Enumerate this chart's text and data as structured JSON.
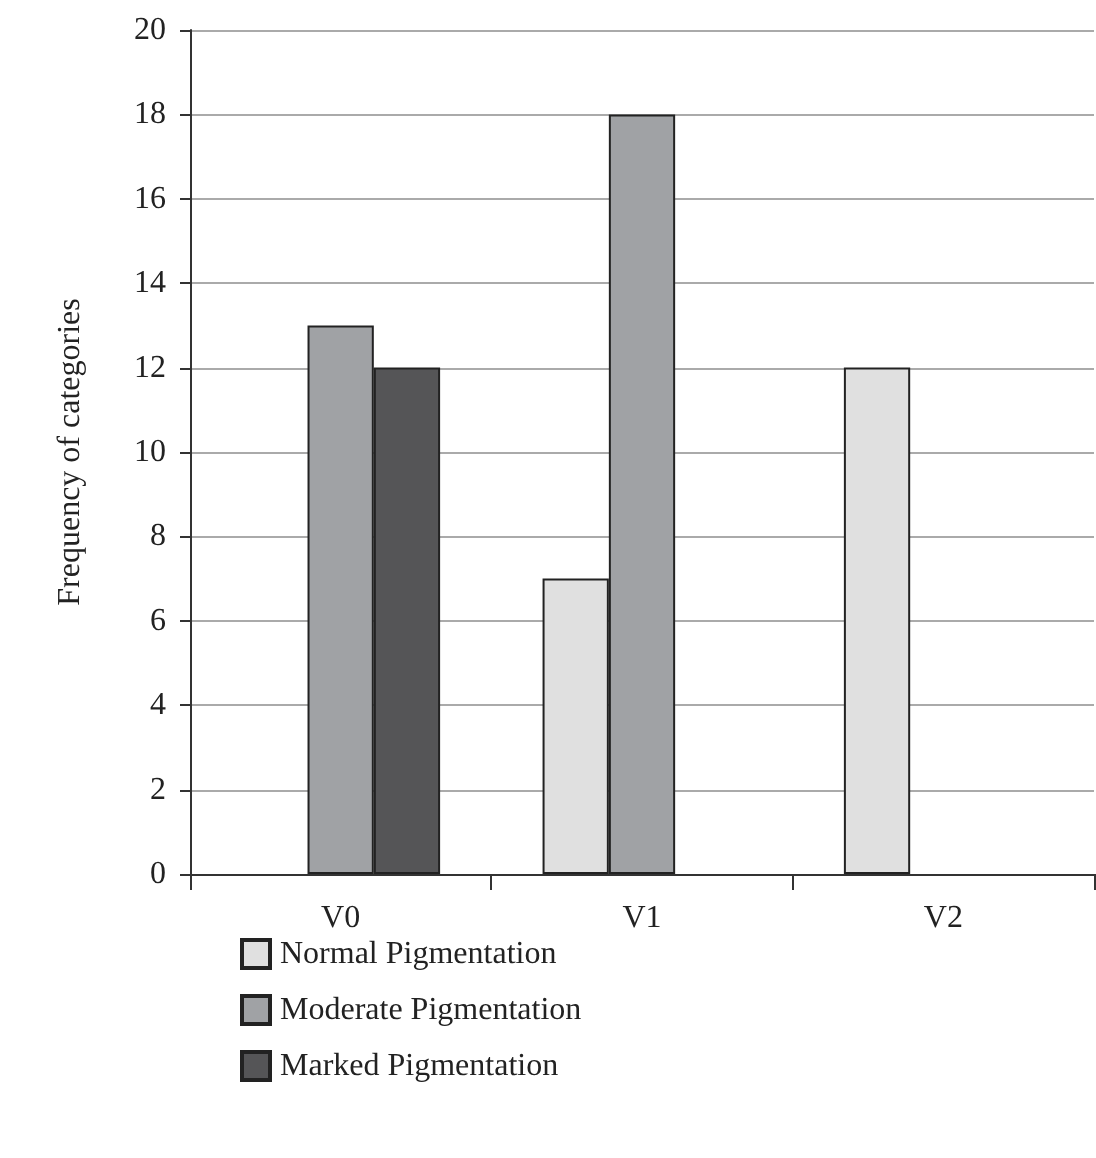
{
  "chart_data": {
    "type": "bar",
    "ylabel": "Frequency of categories",
    "categories": [
      "V0",
      "V1",
      "V2"
    ],
    "series": [
      {
        "name": "Normal Pigmentation",
        "color": "#e0e0e0",
        "values": [
          0,
          7,
          12
        ]
      },
      {
        "name": "Moderate Pigmentation",
        "color": "#a0a2a5",
        "values": [
          13,
          18,
          0
        ]
      },
      {
        "name": "Marked Pigmentation",
        "color": "#555557",
        "values": [
          12,
          0,
          0
        ]
      }
    ],
    "ylim": [
      0,
      20
    ],
    "yticks": [
      0,
      2,
      4,
      6,
      8,
      10,
      12,
      14,
      16,
      18,
      20
    ],
    "grid": "y",
    "legend": "bottom left"
  }
}
